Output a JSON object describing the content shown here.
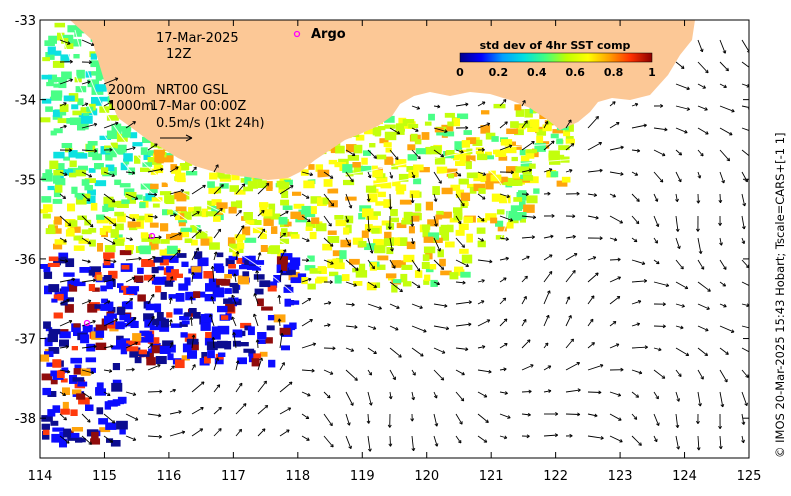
{
  "header": {
    "date": "17-Mar-2025",
    "time": "12Z",
    "legend_depths_1": "200m",
    "legend_depths_2": "1000m",
    "product": "NRT00 GSL",
    "product_time": "17-Mar 00:00Z",
    "scale_label": "0.5m/s (1kt 24h)",
    "argo_label": "Argo"
  },
  "colorbar": {
    "title": "std dev of 4hr SST comp",
    "ticks": [
      "0",
      "0.2",
      "0.4",
      "0.6",
      "0.8",
      "1"
    ],
    "colors": [
      "#00008b",
      "#0000ff",
      "#00a0ff",
      "#00e0e0",
      "#40ff80",
      "#c0ff00",
      "#ffff00",
      "#ffa000",
      "#ff3000",
      "#8b0000"
    ]
  },
  "axes": {
    "x_ticks": [
      "114",
      "115",
      "116",
      "117",
      "118",
      "119",
      "120",
      "121",
      "122",
      "123",
      "124",
      "125"
    ],
    "y_ticks": [
      "-33",
      "-34",
      "-35",
      "-36",
      "-37",
      "-38"
    ],
    "lon_range": [
      114,
      125
    ],
    "lat_range": [
      -38.5,
      -33
    ]
  },
  "credit": "© IMOS 20-Mar-2025 15:43 Hobart; Tscale=CARS+[-1 1]",
  "colors": {
    "land": "#fcc896",
    "ocean_bg": "#ffffff"
  }
}
